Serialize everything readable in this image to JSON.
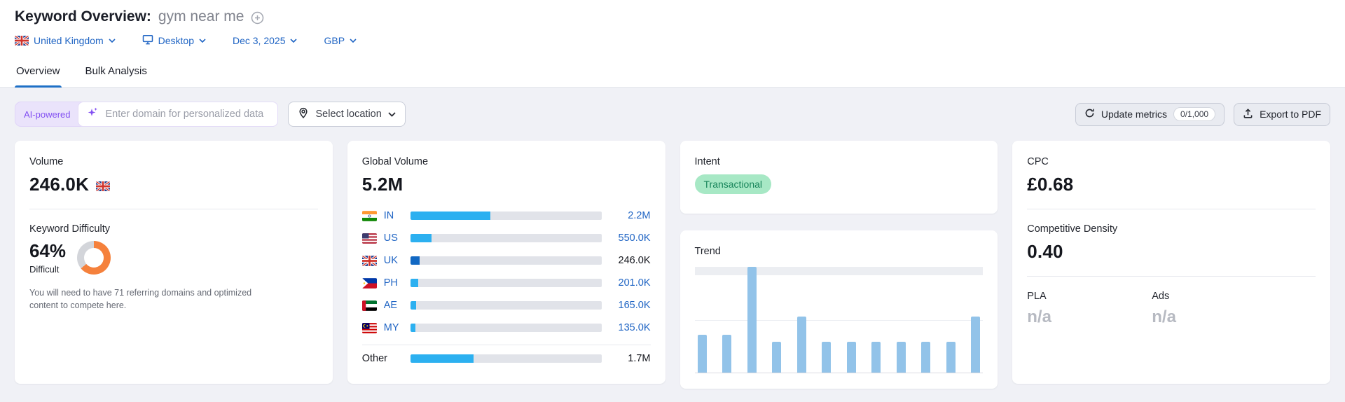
{
  "header": {
    "title": "Keyword Overview:",
    "keyword": "gym near me",
    "country_flag": "gb",
    "filters": {
      "country": "United Kingdom",
      "device": "Desktop",
      "date": "Dec 3, 2025",
      "currency": "GBP"
    }
  },
  "tabs": {
    "overview": "Overview",
    "bulk": "Bulk Analysis"
  },
  "toolbar": {
    "ai_badge": "AI-powered",
    "domain_placeholder": "Enter domain for personalized data",
    "location": "Select location",
    "update_metrics": "Update metrics",
    "update_count": "0/1,000",
    "export_pdf": "Export to PDF"
  },
  "icons": {
    "add_keyword": "plus-circle",
    "device": "monitor",
    "location": "map-pin",
    "ai_input": "sparkle",
    "update_metrics": "refresh",
    "export": "upload-arrow"
  },
  "volume_card": {
    "label": "Volume",
    "value": "246.0K",
    "flag": "gb",
    "kd_label": "Keyword Difficulty",
    "kd_value": "64%",
    "kd_pct": 64,
    "kd_color": "#f5813c",
    "kd_track_color": "#d3d5da",
    "kd_level": "Difficult",
    "kd_note": "You will need to have 71 referring domains and optimized content to compete here."
  },
  "global_card": {
    "label": "Global Volume",
    "value": "5.2M",
    "bar_color": "#2cb0f0",
    "bar_color_selected": "#1268c3",
    "rows": [
      {
        "code": "IN",
        "flag": "in",
        "value": "2.2M",
        "pct": 42
      },
      {
        "code": "US",
        "flag": "us",
        "value": "550.0K",
        "pct": 11
      },
      {
        "code": "UK",
        "flag": "gb",
        "value": "246.0K",
        "pct": 5,
        "selected": true
      },
      {
        "code": "PH",
        "flag": "ph",
        "value": "201.0K",
        "pct": 4
      },
      {
        "code": "AE",
        "flag": "ae",
        "value": "165.0K",
        "pct": 3.2
      },
      {
        "code": "MY",
        "flag": "my",
        "value": "135.0K",
        "pct": 2.6
      },
      {
        "code": "Other",
        "flag": null,
        "value": "1.7M",
        "pct": 33,
        "other": true
      }
    ]
  },
  "intent_card": {
    "label": "Intent",
    "badge": "Transactional",
    "badge_bg": "#a7e8c5",
    "badge_color": "#17845a"
  },
  "trend_card": {
    "label": "Trend",
    "bar_color": "#92c3e9",
    "values_pct": [
      36,
      36,
      100,
      29,
      53,
      29,
      29,
      29,
      29,
      29,
      29,
      53
    ]
  },
  "cpc_card": {
    "label": "CPC",
    "value": "£0.68",
    "cd_label": "Competitive Density",
    "cd_value": "0.40",
    "pla_label": "PLA",
    "pla_value": "n/a",
    "ads_label": "Ads",
    "ads_value": "n/a"
  }
}
